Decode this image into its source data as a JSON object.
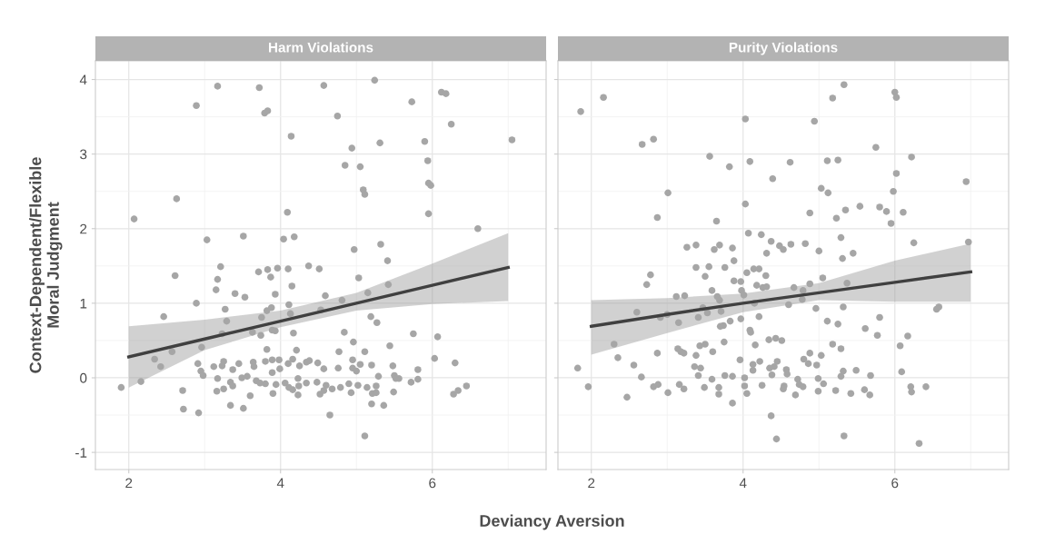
{
  "chart_data": [
    {
      "type": "scatter",
      "title": "Harm Violations",
      "xlabel": "Deviancy Aversion",
      "ylabel": "Context-Dependent/Flexible\nMoral Judgment",
      "xlim": [
        1.56,
        7.5
      ],
      "ylim": [
        -1.23,
        4.25
      ],
      "xticks": [
        2,
        4,
        6
      ],
      "yticks": [
        -1,
        0,
        1,
        2,
        3,
        4
      ],
      "grid": true,
      "series": [
        {
          "marker": "circle",
          "color": "#a6a6a6",
          "x": [
            2.07,
            2.63,
            2.89,
            3.03,
            3.17,
            3.51,
            3.72,
            3.79,
            3.83,
            4.04,
            4.09,
            4.14,
            4.18,
            4.57,
            4.75,
            4.85,
            4.94,
            4.97,
            5.05,
            5.09,
            5.11,
            5.24,
            5.31,
            5.32,
            5.73,
            5.9,
            5.94,
            5.95,
            5.98,
            5.95,
            6.12,
            6.18,
            6.25,
            6.6,
            7.05,
            5.41,
            3.21,
            2.61,
            3.71,
            3.83,
            3.96,
            4.1,
            4.37,
            4.51,
            3.87,
            3.17,
            3.15,
            4.15,
            5.03,
            3.4,
            3.53,
            3.93,
            4.59,
            5.15,
            5.42,
            2.89,
            4.81,
            4.11,
            3.27,
            3.88,
            3.82,
            2.46,
            3.75,
            4.13,
            4.53,
            5.19,
            5.27,
            3.29,
            3.89,
            3.93,
            3.63,
            3.74,
            4.17,
            4.84,
            5.75,
            6.07,
            4.96,
            3.23,
            2.96,
            2.57,
            3.82,
            4.21,
            5.44,
            5.11,
            4.77,
            2.34,
            2.42,
            2.91,
            2.95,
            2.98,
            3.12,
            3.25,
            3.23,
            3.37,
            3.45,
            3.64,
            3.65,
            3.8,
            3.89,
            3.98,
            3.99,
            3.89,
            4.1,
            4.16,
            4.25,
            4.34,
            4.38,
            4.49,
            4.57,
            4.76,
            4.95,
            4.95,
            5.0,
            5.05,
            5.2,
            5.48,
            6.03,
            6.3,
            5.81,
            5.29,
            5.5,
            5.56,
            5.72,
            5.81,
            5.52,
            1.9,
            2.16,
            2.71,
            3.17,
            3.16,
            3.25,
            3.34,
            3.37,
            3.49,
            3.56,
            3.68,
            3.73,
            3.8,
            3.6,
            3.9,
            3.94,
            4.06,
            4.11,
            4.16,
            4.23,
            4.24,
            4.23,
            4.34,
            4.48,
            4.52,
            4.57,
            4.6,
            4.68,
            4.79,
            4.9,
            4.93,
            5.02,
            5.14,
            5.26,
            5.21,
            5.26,
            5.49,
            6.28,
            6.34,
            6.45,
            2.72,
            2.92,
            3.34,
            3.51,
            4.65,
            5.2,
            5.36,
            5.11
          ],
          "values": [
            2.13,
            2.4,
            3.65,
            1.85,
            3.91,
            1.9,
            3.89,
            3.55,
            3.58,
            1.86,
            2.22,
            3.24,
            1.89,
            3.92,
            3.51,
            2.85,
            3.08,
            1.72,
            2.83,
            2.52,
            2.46,
            3.99,
            3.15,
            1.79,
            3.7,
            3.17,
            2.91,
            2.61,
            2.58,
            2.2,
            3.83,
            3.81,
            3.4,
            2.0,
            3.19,
            1.57,
            1.49,
            1.37,
            1.42,
            1.45,
            1.47,
            1.46,
            1.5,
            1.46,
            1.35,
            1.32,
            1.18,
            1.23,
            1.34,
            1.13,
            1.08,
            1.12,
            1.1,
            1.14,
            1.25,
            1.0,
            1.04,
            0.98,
            0.92,
            0.94,
            0.9,
            0.82,
            0.81,
            0.86,
            0.91,
            0.82,
            0.74,
            0.76,
            0.64,
            0.63,
            0.61,
            0.57,
            0.6,
            0.61,
            0.59,
            0.55,
            0.48,
            0.59,
            0.41,
            0.35,
            0.38,
            0.37,
            0.43,
            0.35,
            0.35,
            0.25,
            0.15,
            0.19,
            0.09,
            0.03,
            0.15,
            0.22,
            0.16,
            0.11,
            0.19,
            0.21,
            0.15,
            0.22,
            0.24,
            0.24,
            0.12,
            0.07,
            0.19,
            0.25,
            0.16,
            0.21,
            0.23,
            0.2,
            0.12,
            0.13,
            0.24,
            0.13,
            0.09,
            0.18,
            0.17,
            0.16,
            0.26,
            0.2,
            0.11,
            0.02,
            0.03,
            -0.01,
            -0.06,
            -0.02,
            -0.01,
            -0.13,
            -0.05,
            -0.17,
            -0.01,
            -0.18,
            -0.15,
            -0.06,
            -0.11,
            0.0,
            0.02,
            -0.04,
            -0.07,
            -0.08,
            -0.24,
            -0.21,
            -0.09,
            -0.07,
            -0.13,
            -0.16,
            -0.01,
            -0.11,
            -0.23,
            -0.07,
            -0.06,
            -0.22,
            -0.17,
            -0.1,
            -0.15,
            -0.13,
            -0.08,
            -0.2,
            -0.1,
            -0.13,
            -0.11,
            -0.21,
            -0.2,
            -0.19,
            -0.22,
            -0.17,
            -0.11,
            -0.42,
            -0.47,
            -0.37,
            -0.41,
            -0.5,
            -0.35,
            -0.37,
            -0.78
          ]
        },
        {
          "type": "line",
          "color": "#404040",
          "x": [
            2,
            3,
            4,
            5,
            6,
            7
          ],
          "values": [
            0.28,
            0.52,
            0.76,
            1.0,
            1.24,
            1.48
          ],
          "lower": [
            -0.13,
            0.37,
            0.68,
            0.9,
            0.99,
            1.03
          ],
          "upper": [
            0.69,
            0.78,
            0.9,
            1.14,
            1.53,
            1.94
          ]
        }
      ]
    },
    {
      "type": "scatter",
      "title": "Purity Violations",
      "xlim": [
        1.56,
        7.5
      ],
      "ylim": [
        -1.23,
        4.25
      ],
      "xticks": [
        2,
        4,
        6
      ],
      "yticks": [
        -1,
        0,
        1,
        2,
        3,
        4
      ],
      "grid": true,
      "tick_labels": "x",
      "series": [
        {
          "marker": "circle",
          "color": "#a6a6a6",
          "x": [
            1.86,
            2.16,
            2.67,
            2.82,
            3.01,
            2.87,
            3.56,
            3.82,
            3.65,
            4.03,
            4.09,
            4.03,
            4.39,
            4.62,
            4.94,
            4.88,
            5.03,
            5.11,
            5.12,
            5.18,
            5.33,
            5.25,
            5.23,
            5.35,
            5.54,
            5.75,
            5.8,
            5.89,
            5.95,
            5.98,
            6.0,
            6.02,
            6.02,
            6.11,
            6.22,
            6.94,
            5.29,
            4.07,
            4.24,
            4.37,
            4.48,
            4.53,
            4.63,
            4.82,
            5.0,
            6.25,
            6.97,
            3.26,
            3.38,
            3.62,
            3.69,
            3.86,
            4.31,
            5.45,
            5.31,
            3.38,
            3.55,
            3.76,
            3.88,
            3.5,
            4.14,
            4.21,
            4.05,
            4.3,
            2.78,
            2.73,
            3.88,
            3.97,
            4.18,
            4.26,
            4.31,
            3.59,
            3.66,
            3.69,
            3.98,
            4.01,
            4.67,
            4.79,
            4.78,
            4.88,
            5.05,
            5.37,
            3.12,
            3.23,
            4.15,
            4.6,
            4.96,
            5.32,
            2.6,
            3.47,
            3.53,
            2.91,
            3.0,
            3.41,
            3.71,
            3.15,
            3.83,
            3.7,
            3.74,
            3.97,
            4.21,
            6.55,
            6.58,
            5.8,
            5.11,
            5.25,
            5.61,
            5.77,
            6.17,
            6.07,
            4.09,
            4.1,
            2.3,
            2.35,
            2.87,
            2.56,
            2.66,
            3.14,
            3.18,
            3.22,
            3.38,
            3.43,
            3.5,
            3.6,
            3.75,
            4.16,
            4.34,
            4.43,
            4.51,
            3.96,
            4.13,
            4.22,
            4.13,
            4.35,
            4.41,
            4.45,
            4.38,
            4.57,
            4.58,
            4.8,
            4.88,
            4.86,
            4.97,
            5.03,
            5.18,
            5.29,
            3.36,
            3.44,
            3.41,
            3.76,
            3.86,
            1.82,
            1.96,
            2.47,
            2.82,
            2.88,
            3.01,
            3.16,
            3.22,
            3.49,
            3.59,
            3.68,
            3.68,
            4.02,
            4.02,
            4.05,
            3.86,
            4.25,
            4.54,
            4.53,
            4.72,
            4.74,
            4.79,
            4.69,
            4.99,
            5.06,
            4.99,
            5.22,
            5.29,
            5.32,
            5.49,
            5.68,
            5.42,
            5.6,
            5.67,
            6.09,
            6.21,
            6.22,
            6.41,
            4.37,
            4.44,
            5.33,
            6.32
          ],
          "values": [
            3.57,
            3.76,
            3.13,
            3.2,
            2.48,
            2.15,
            2.97,
            2.83,
            2.1,
            3.47,
            2.9,
            2.33,
            2.67,
            2.89,
            3.44,
            2.21,
            2.54,
            2.91,
            2.48,
            3.75,
            3.93,
            2.92,
            2.14,
            2.25,
            2.3,
            3.09,
            2.29,
            2.23,
            2.07,
            2.5,
            3.83,
            3.76,
            2.74,
            2.22,
            2.96,
            2.63,
            1.88,
            1.94,
            1.92,
            1.83,
            1.77,
            1.72,
            1.79,
            1.8,
            1.7,
            1.81,
            1.82,
            1.75,
            1.78,
            1.72,
            1.78,
            1.74,
            1.67,
            1.67,
            1.6,
            1.48,
            1.49,
            1.48,
            1.57,
            1.36,
            1.46,
            1.46,
            1.41,
            1.37,
            1.38,
            1.25,
            1.3,
            1.29,
            1.24,
            1.21,
            1.22,
            1.17,
            1.09,
            1.04,
            1.17,
            1.11,
            1.21,
            1.17,
            1.05,
            1.26,
            1.34,
            1.27,
            1.09,
            1.1,
            1.0,
            0.98,
            0.93,
            0.95,
            0.88,
            0.94,
            0.87,
            0.81,
            0.85,
            0.81,
            0.89,
            0.74,
            0.76,
            0.69,
            0.7,
            0.79,
            0.82,
            0.92,
            0.95,
            0.81,
            0.76,
            0.72,
            0.66,
            0.57,
            0.56,
            0.43,
            0.64,
            0.61,
            0.45,
            0.27,
            0.33,
            0.17,
            0.01,
            0.39,
            0.35,
            0.33,
            0.3,
            0.43,
            0.45,
            0.35,
            0.48,
            0.44,
            0.51,
            0.53,
            0.5,
            0.24,
            0.18,
            0.22,
            0.1,
            0.13,
            0.15,
            0.22,
            0.04,
            0.11,
            0.05,
            0.25,
            0.33,
            0.19,
            0.17,
            0.3,
            0.45,
            0.39,
            0.15,
            0.13,
            0.03,
            0.03,
            0.02,
            0.13,
            -0.12,
            -0.26,
            -0.12,
            -0.09,
            -0.2,
            -0.09,
            -0.15,
            -0.13,
            -0.02,
            -0.13,
            -0.22,
            0.0,
            -0.11,
            -0.21,
            -0.34,
            -0.1,
            -0.11,
            -0.15,
            -0.02,
            -0.09,
            -0.12,
            -0.23,
            -0.01,
            -0.08,
            -0.18,
            -0.17,
            0.02,
            0.09,
            0.1,
            0.03,
            -0.21,
            -0.16,
            -0.23,
            0.08,
            -0.12,
            -0.19,
            -0.12,
            -0.51,
            -0.82,
            -0.78,
            -0.88
          ]
        },
        {
          "type": "line",
          "color": "#404040",
          "x": [
            2,
            3,
            4,
            5,
            6,
            7
          ],
          "values": [
            0.69,
            0.85,
            1.0,
            1.14,
            1.28,
            1.42
          ],
          "lower": [
            0.31,
            0.6,
            0.88,
            1.04,
            1.02,
            1.02
          ],
          "upper": [
            1.04,
            1.07,
            1.13,
            1.27,
            1.57,
            1.8
          ]
        }
      ]
    }
  ]
}
